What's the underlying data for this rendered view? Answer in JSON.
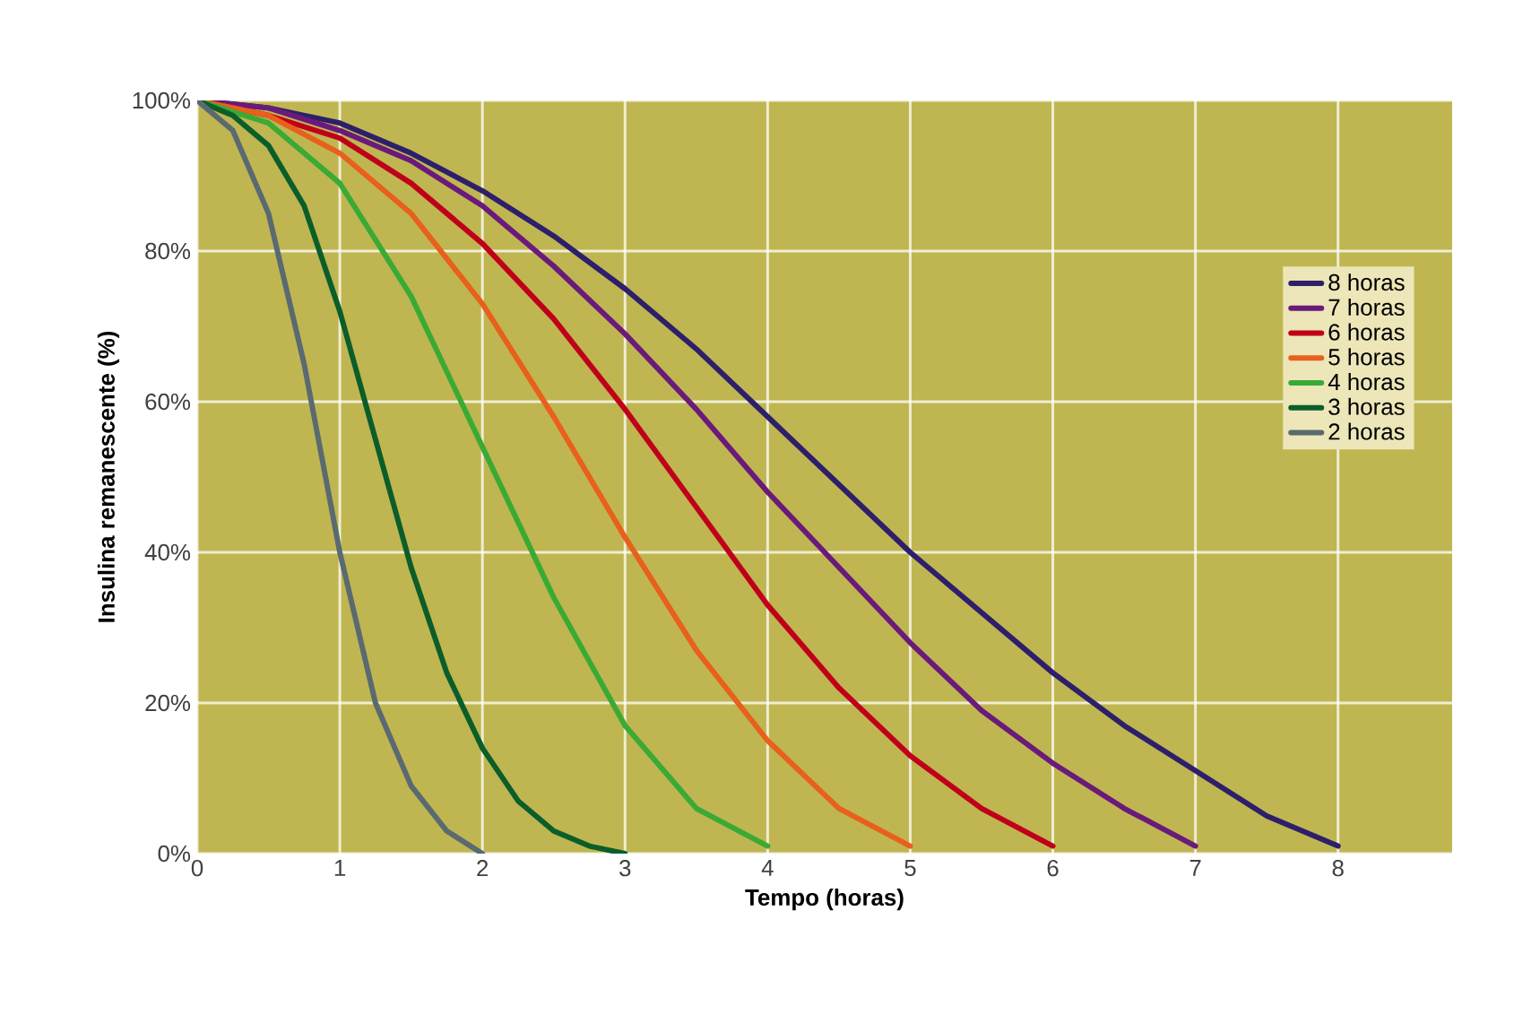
{
  "chart_data": {
    "type": "line",
    "xlabel": "Tempo (horas)",
    "ylabel": "Insulina remanescente (%)",
    "xlim": [
      0,
      8.8
    ],
    "ylim": [
      0,
      100
    ],
    "xticks": [
      0,
      1,
      2,
      3,
      4,
      5,
      6,
      7,
      8
    ],
    "yticks": [
      {
        "value": 0,
        "label": "0%"
      },
      {
        "value": 20,
        "label": "20%"
      },
      {
        "value": 40,
        "label": "40%"
      },
      {
        "value": 60,
        "label": "60%"
      },
      {
        "value": 80,
        "label": "80%"
      },
      {
        "value": 100,
        "label": "100%"
      }
    ],
    "grid": true,
    "legend": "right",
    "marker": "none",
    "line_style": "solid",
    "series": [
      {
        "name": "8 horas",
        "color": "#2e1f6b",
        "x": [
          0,
          0.5,
          1,
          1.5,
          2,
          2.5,
          3,
          3.5,
          4,
          4.5,
          5,
          5.5,
          6,
          6.5,
          7,
          7.5,
          8
        ],
        "values": [
          100,
          99,
          97,
          93,
          88,
          82,
          75,
          67,
          58,
          49,
          40,
          32,
          24,
          17,
          11,
          5,
          1
        ]
      },
      {
        "name": "7 horas",
        "color": "#6a1a7a",
        "x": [
          0,
          0.5,
          1,
          1.5,
          2,
          2.5,
          3,
          3.5,
          4,
          4.5,
          5,
          5.5,
          6,
          6.5,
          7
        ],
        "values": [
          100,
          99,
          96,
          92,
          86,
          78,
          69,
          59,
          48,
          38,
          28,
          19,
          12,
          6,
          1
        ]
      },
      {
        "name": "6 horas",
        "color": "#c0001a",
        "x": [
          0,
          0.5,
          1,
          1.5,
          2,
          2.5,
          3,
          3.5,
          4,
          4.5,
          5,
          5.5,
          6
        ],
        "values": [
          100,
          98,
          95,
          89,
          81,
          71,
          59,
          46,
          33,
          22,
          13,
          6,
          1
        ]
      },
      {
        "name": "5 horas",
        "color": "#e8601c",
        "x": [
          0,
          0.5,
          1,
          1.5,
          2,
          2.5,
          3,
          3.5,
          4,
          4.5,
          5
        ],
        "values": [
          100,
          98,
          93,
          85,
          73,
          58,
          42,
          27,
          15,
          6,
          1
        ]
      },
      {
        "name": "4 horas",
        "color": "#3aaa35",
        "x": [
          0,
          0.5,
          1,
          1.5,
          2,
          2.5,
          3,
          3.5,
          4
        ],
        "values": [
          100,
          97,
          89,
          74,
          54,
          34,
          17,
          6,
          1
        ]
      },
      {
        "name": "3 horas",
        "color": "#0b5e2a",
        "x": [
          0,
          0.25,
          0.5,
          0.75,
          1,
          1.25,
          1.5,
          1.75,
          2,
          2.25,
          2.5,
          2.75,
          3
        ],
        "values": [
          100,
          98,
          94,
          86,
          72,
          55,
          38,
          24,
          14,
          7,
          3,
          1,
          0
        ]
      },
      {
        "name": "2 horas",
        "color": "#5a6a70",
        "x": [
          0,
          0.25,
          0.5,
          0.75,
          1,
          1.25,
          1.5,
          1.75,
          2
        ],
        "values": [
          100,
          96,
          85,
          65,
          40,
          20,
          9,
          3,
          0
        ]
      }
    ]
  }
}
